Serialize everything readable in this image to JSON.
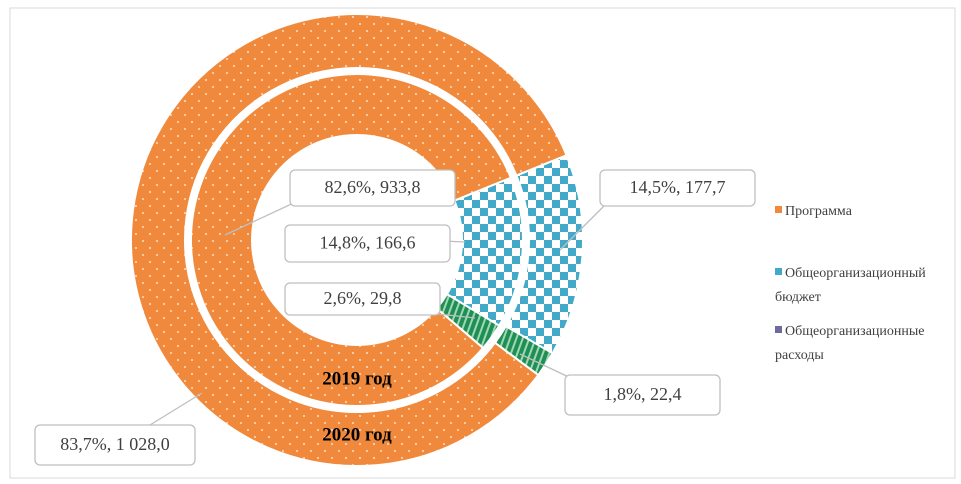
{
  "chart_data": {
    "type": "donut",
    "categories": [
      "Программа",
      "Общеорганизационный бюджет",
      "Общеорганизационные расходы"
    ],
    "colors": [
      "#f0893b",
      "#43a9c8",
      "#6e6a9e"
    ],
    "series": [
      {
        "name": "2019 год",
        "values": [
          933.8,
          166.6,
          29.8
        ],
        "value_labels": [
          "82,6%, 933,8",
          "14,8%, 166,6",
          "2,6%, 29,8"
        ]
      },
      {
        "name": "2020 год",
        "values": [
          1028.0,
          177.7,
          22.4
        ],
        "value_labels": [
          "83,7%, 1 028,0",
          "14,5%, 177,7",
          "1,8%, 22,4"
        ]
      }
    ]
  }
}
